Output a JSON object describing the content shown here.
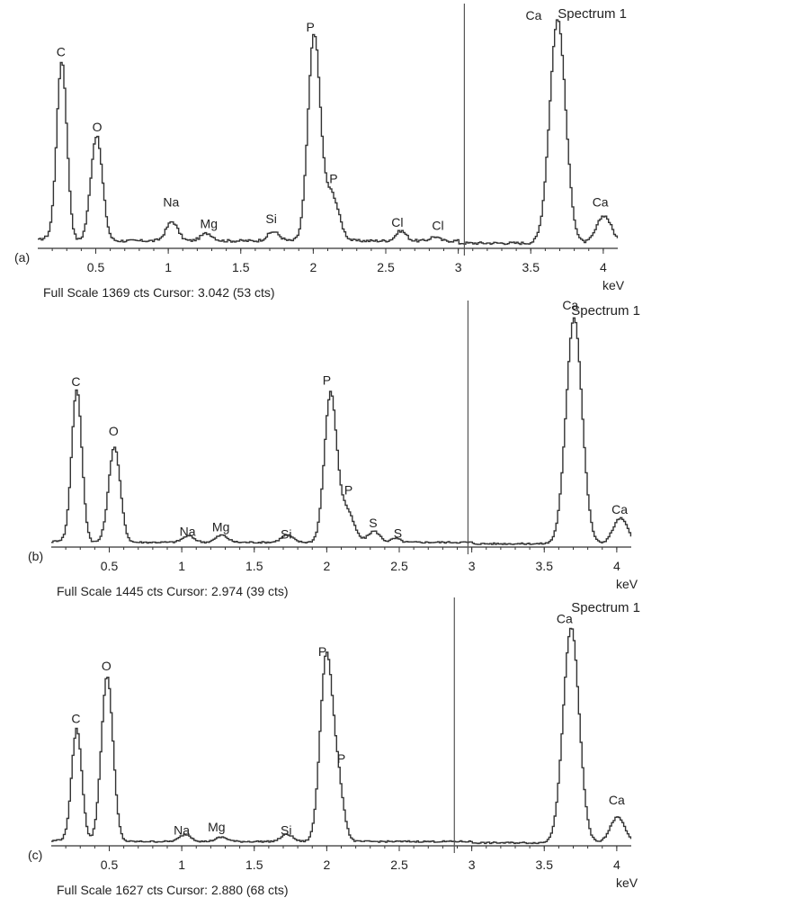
{
  "chart_data": [
    {
      "type": "line",
      "panel": "(a)",
      "title": "Spectrum 1",
      "xlabel": "keV",
      "xlim": [
        0.1,
        4.1
      ],
      "xticks": [
        0.5,
        1,
        1.5,
        2,
        2.5,
        3,
        3.5,
        4
      ],
      "xtick_labels": [
        "0.5",
        "1",
        "1.5",
        "2",
        "2.5",
        "3",
        "3.5",
        "4"
      ],
      "full_scale_cts": 1369,
      "ylim": [
        0,
        1369
      ],
      "cursor_kev": 3.042,
      "status_text": "Full Scale 1369 cts Cursor: 3.042 (53 cts)",
      "baseline": 45,
      "peaks": [
        {
          "x": 0.26,
          "y": 1080,
          "w": 0.035
        },
        {
          "x": 0.5,
          "y": 630,
          "w": 0.04
        },
        {
          "x": 1.02,
          "y": 115,
          "w": 0.04
        },
        {
          "x": 1.26,
          "y": 45,
          "w": 0.04
        },
        {
          "x": 1.72,
          "y": 55,
          "w": 0.04
        },
        {
          "x": 2.0,
          "y": 1230,
          "w": 0.042
        },
        {
          "x": 2.12,
          "y": 280,
          "w": 0.05
        },
        {
          "x": 2.6,
          "y": 60,
          "w": 0.035
        },
        {
          "x": 2.83,
          "y": 25,
          "w": 0.03
        },
        {
          "x": 3.68,
          "y": 1340,
          "w": 0.055
        },
        {
          "x": 4.0,
          "y": 165,
          "w": 0.05
        }
      ],
      "annotations": [
        {
          "text": "C",
          "x": 0.26,
          "y": 1150
        },
        {
          "text": "O",
          "x": 0.51,
          "y": 700
        },
        {
          "text": "Na",
          "x": 1.02,
          "y": 250
        },
        {
          "text": "Mg",
          "x": 1.28,
          "y": 120
        },
        {
          "text": "Si",
          "x": 1.71,
          "y": 150
        },
        {
          "text": "P",
          "x": 1.98,
          "y": 1300
        },
        {
          "text": "P",
          "x": 2.14,
          "y": 390
        },
        {
          "text": "Cl",
          "x": 2.58,
          "y": 130
        },
        {
          "text": "Cl",
          "x": 2.86,
          "y": 110
        },
        {
          "text": "Ca",
          "x": 3.52,
          "y": 1370
        },
        {
          "text": "Ca",
          "x": 3.98,
          "y": 250
        }
      ]
    },
    {
      "type": "line",
      "panel": "(b)",
      "title": "Spectrum 1",
      "xlabel": "keV",
      "xlim": [
        0.1,
        4.1
      ],
      "xticks": [
        0.5,
        1,
        1.5,
        2,
        2.5,
        3,
        3.5,
        4
      ],
      "xtick_labels": [
        "0.5",
        "1",
        "1.5",
        "2",
        "2.5",
        "3",
        "3.5",
        "4"
      ],
      "full_scale_cts": 1445,
      "ylim": [
        0,
        1445
      ],
      "cursor_kev": 2.974,
      "status_text": "Full Scale 1445 cts Cursor: 2.974 (39 cts)",
      "baseline": 30,
      "peaks": [
        {
          "x": 0.27,
          "y": 960,
          "w": 0.035
        },
        {
          "x": 0.53,
          "y": 600,
          "w": 0.04
        },
        {
          "x": 1.04,
          "y": 40,
          "w": 0.04
        },
        {
          "x": 1.27,
          "y": 45,
          "w": 0.04
        },
        {
          "x": 1.72,
          "y": 45,
          "w": 0.04
        },
        {
          "x": 2.02,
          "y": 925,
          "w": 0.042
        },
        {
          "x": 2.13,
          "y": 200,
          "w": 0.05
        },
        {
          "x": 2.32,
          "y": 70,
          "w": 0.04
        },
        {
          "x": 2.47,
          "y": 25,
          "w": 0.03
        },
        {
          "x": 3.7,
          "y": 1420,
          "w": 0.055
        },
        {
          "x": 4.02,
          "y": 160,
          "w": 0.05
        }
      ],
      "annotations": [
        {
          "text": "C",
          "x": 0.27,
          "y": 1010
        },
        {
          "text": "O",
          "x": 0.53,
          "y": 700
        },
        {
          "text": "Na",
          "x": 1.04,
          "y": 70
        },
        {
          "text": "Mg",
          "x": 1.27,
          "y": 100
        },
        {
          "text": "Si",
          "x": 1.72,
          "y": 55
        },
        {
          "text": "P",
          "x": 2.0,
          "y": 1020
        },
        {
          "text": "P",
          "x": 2.15,
          "y": 330
        },
        {
          "text": "S",
          "x": 2.32,
          "y": 125
        },
        {
          "text": "S",
          "x": 2.49,
          "y": 60
        },
        {
          "text": "Ca",
          "x": 3.68,
          "y": 1490
        },
        {
          "text": "Ca",
          "x": 4.02,
          "y": 210
        }
      ]
    },
    {
      "type": "line",
      "panel": "(c)",
      "title": "Spectrum 1",
      "xlabel": "keV",
      "xlim": [
        0.1,
        4.1
      ],
      "xticks": [
        0.5,
        1,
        1.5,
        2,
        2.5,
        3,
        3.5,
        4
      ],
      "xtick_labels": [
        "0.5",
        "1",
        "1.5",
        "2",
        "2.5",
        "3",
        "3.5",
        "4"
      ],
      "full_scale_cts": 1627,
      "ylim": [
        0,
        1627
      ],
      "cursor_kev": 2.88,
      "status_text": "Full Scale 1627 cts Cursor: 2.880 (68 cts)",
      "baseline": 30,
      "peaks": [
        {
          "x": 0.27,
          "y": 790,
          "w": 0.035
        },
        {
          "x": 0.48,
          "y": 1160,
          "w": 0.04
        },
        {
          "x": 1.02,
          "y": 50,
          "w": 0.04
        },
        {
          "x": 1.27,
          "y": 30,
          "w": 0.04
        },
        {
          "x": 1.72,
          "y": 50,
          "w": 0.04
        },
        {
          "x": 1.99,
          "y": 1270,
          "w": 0.042
        },
        {
          "x": 2.07,
          "y": 400,
          "w": 0.04
        },
        {
          "x": 3.68,
          "y": 1510,
          "w": 0.055
        },
        {
          "x": 4.0,
          "y": 180,
          "w": 0.05
        }
      ],
      "annotations": [
        {
          "text": "C",
          "x": 0.27,
          "y": 860
        },
        {
          "text": "O",
          "x": 0.48,
          "y": 1230
        },
        {
          "text": "Na",
          "x": 1.0,
          "y": 80
        },
        {
          "text": "Mg",
          "x": 1.24,
          "y": 100
        },
        {
          "text": "Si",
          "x": 1.72,
          "y": 80
        },
        {
          "text": "P",
          "x": 1.97,
          "y": 1330
        },
        {
          "text": "P",
          "x": 2.1,
          "y": 580
        },
        {
          "text": "Ca",
          "x": 3.64,
          "y": 1560
        },
        {
          "text": "Ca",
          "x": 4.0,
          "y": 290
        }
      ]
    }
  ]
}
